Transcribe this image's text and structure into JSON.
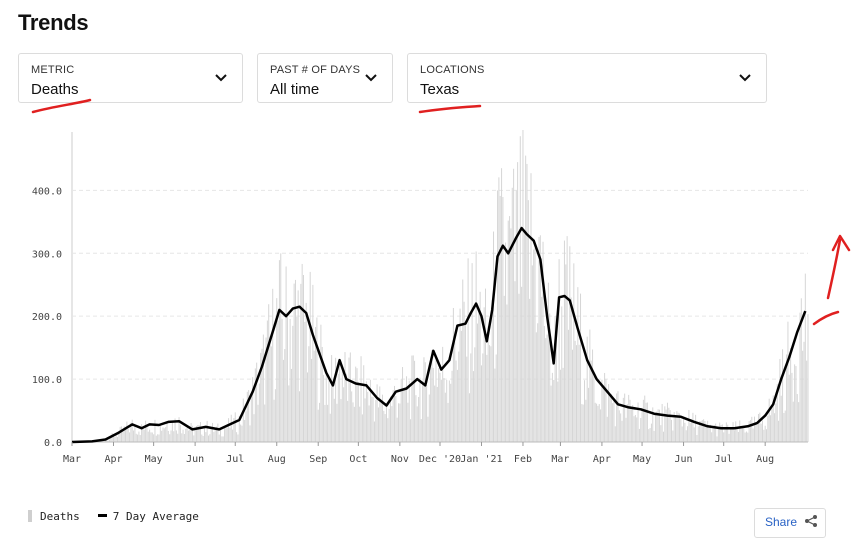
{
  "page": {
    "title": "Trends"
  },
  "filters": {
    "metric": {
      "label": "METRIC",
      "value": "Deaths"
    },
    "days": {
      "label": "PAST # OF DAYS",
      "value": "All time"
    },
    "location": {
      "label": "LOCATIONS",
      "value": "Texas"
    }
  },
  "legend": {
    "bars": "Deaths",
    "line": "7 Day Average"
  },
  "share": {
    "label": "Share"
  },
  "chart_data": {
    "type": "bar",
    "overlay": "line",
    "ylim": [
      0,
      480
    ],
    "y_ticks": [
      0,
      100,
      200,
      300,
      400
    ],
    "y_tick_labels": [
      "0.0",
      "100.0",
      "200.0",
      "300.0",
      "400.0"
    ],
    "x_tick_labels": [
      "Mar",
      "Apr",
      "May",
      "Jun",
      "Jul",
      "Aug",
      "Sep",
      "Oct",
      "Nov",
      "Dec '20",
      "Jan '21",
      "Feb",
      "Mar",
      "Apr",
      "May",
      "Jun",
      "Jul",
      "Aug"
    ],
    "x_tick_day_index": [
      0,
      31,
      61,
      92,
      122,
      153,
      184,
      214,
      245,
      275,
      306,
      337,
      365,
      396,
      426,
      457,
      487,
      518
    ],
    "days": 550,
    "grid": true,
    "legend_position": "bottom-left",
    "colors": {
      "bars": "#d6d6d6",
      "line": "#000000",
      "grid": "#e6e6e6"
    },
    "series": [
      {
        "name": "Deaths",
        "kind": "bar",
        "note": "daily values approximated by noisy variation around the 7 day average"
      },
      {
        "name": "7 Day Average",
        "kind": "line",
        "points": [
          [
            0,
            0
          ],
          [
            15,
            1
          ],
          [
            25,
            4
          ],
          [
            35,
            15
          ],
          [
            45,
            28
          ],
          [
            52,
            22
          ],
          [
            58,
            28
          ],
          [
            65,
            27
          ],
          [
            72,
            32
          ],
          [
            80,
            33
          ],
          [
            90,
            20
          ],
          [
            100,
            24
          ],
          [
            110,
            20
          ],
          [
            118,
            28
          ],
          [
            125,
            35
          ],
          [
            135,
            80
          ],
          [
            142,
            120
          ],
          [
            150,
            175
          ],
          [
            155,
            210
          ],
          [
            160,
            200
          ],
          [
            165,
            212
          ],
          [
            170,
            215
          ],
          [
            175,
            205
          ],
          [
            180,
            170
          ],
          [
            185,
            140
          ],
          [
            190,
            110
          ],
          [
            195,
            90
          ],
          [
            200,
            130
          ],
          [
            205,
            100
          ],
          [
            212,
            93
          ],
          [
            220,
            90
          ],
          [
            228,
            70
          ],
          [
            235,
            58
          ],
          [
            242,
            80
          ],
          [
            250,
            85
          ],
          [
            258,
            100
          ],
          [
            264,
            90
          ],
          [
            270,
            145
          ],
          [
            276,
            115
          ],
          [
            282,
            130
          ],
          [
            288,
            185
          ],
          [
            294,
            188
          ],
          [
            298,
            205
          ],
          [
            302,
            220
          ],
          [
            306,
            200
          ],
          [
            310,
            160
          ],
          [
            314,
            210
          ],
          [
            318,
            295
          ],
          [
            322,
            312
          ],
          [
            326,
            300
          ],
          [
            332,
            325
          ],
          [
            336,
            340
          ],
          [
            340,
            330
          ],
          [
            345,
            320
          ],
          [
            350,
            290
          ],
          [
            355,
            200
          ],
          [
            360,
            125
          ],
          [
            364,
            230
          ],
          [
            368,
            232
          ],
          [
            372,
            225
          ],
          [
            378,
            180
          ],
          [
            385,
            130
          ],
          [
            392,
            100
          ],
          [
            400,
            80
          ],
          [
            408,
            60
          ],
          [
            416,
            55
          ],
          [
            425,
            52
          ],
          [
            435,
            45
          ],
          [
            445,
            42
          ],
          [
            455,
            40
          ],
          [
            465,
            32
          ],
          [
            475,
            25
          ],
          [
            485,
            22
          ],
          [
            495,
            22
          ],
          [
            505,
            25
          ],
          [
            512,
            30
          ],
          [
            518,
            42
          ],
          [
            524,
            60
          ],
          [
            530,
            100
          ],
          [
            536,
            135
          ],
          [
            542,
            175
          ],
          [
            548,
            208
          ]
        ]
      }
    ]
  }
}
